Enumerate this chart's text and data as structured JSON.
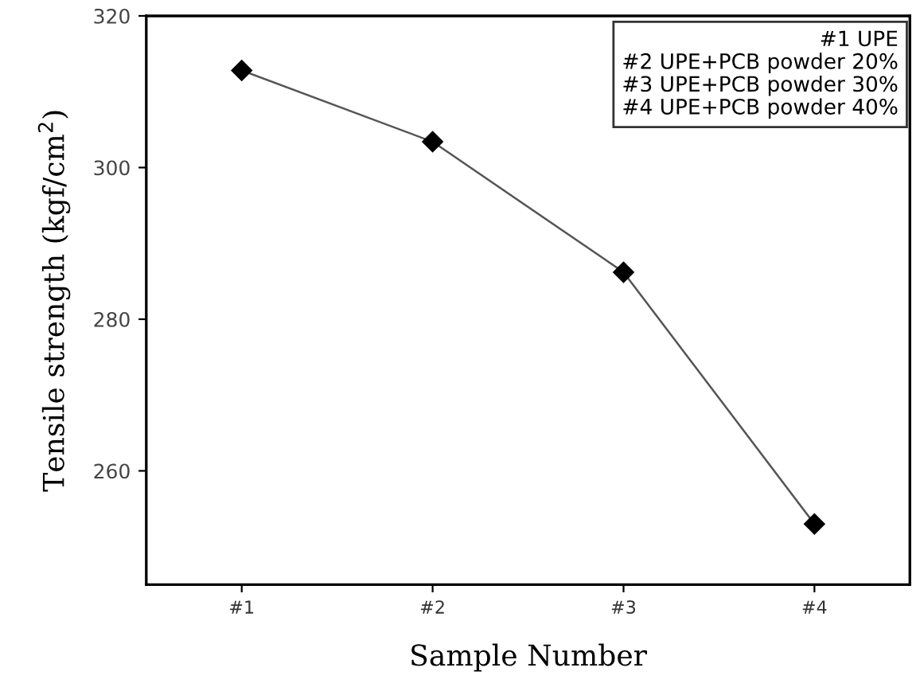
{
  "chart_data": {
    "type": "line",
    "xlabel": "Sample Number",
    "ylabel": "Tensile strength (kgf/cm$^{2}$)",
    "categories": [
      "#1",
      "#2",
      "#3",
      "#4"
    ],
    "series": [
      {
        "color": "#000000",
        "values": [
          312.8,
          303.4,
          286.2,
          253.0
        ]
      }
    ],
    "ylim": [
      245,
      320
    ],
    "yticks": [
      260,
      280,
      300,
      320
    ],
    "marker": "diamond",
    "line_style": "solid",
    "grid": false,
    "legend": false,
    "annotations": [
      "#1 UPE\n#2 UPE+PCB powder 20%\n#3 UPE+PCB powder 30%\n#4 UPE+PCB powder 40%"
    ]
  }
}
